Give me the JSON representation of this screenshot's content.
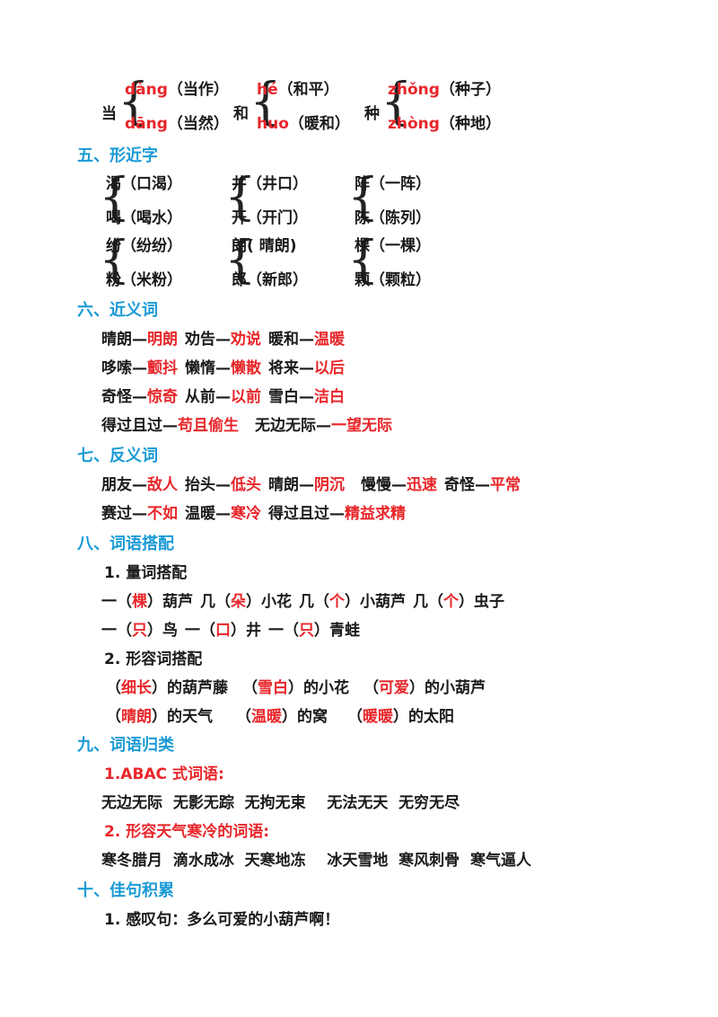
{
  "duoyin": [
    {
      "char": "当",
      "a_py": "dàng",
      "a_word": "（当作）",
      "b_py": "dāng",
      "b_word": "（当然）"
    },
    {
      "char": "和",
      "a_py": "hé",
      "a_word": "（和平）",
      "b_py": "huo",
      "b_word": "（暖和）"
    },
    {
      "char": "种",
      "a_py": "zhǒng",
      "a_word": "（种子）",
      "b_py": "zhòng",
      "b_word": "（种地）"
    }
  ],
  "s5": {
    "title": "五、形近字",
    "pairs": [
      {
        "a": "渴（口渴）",
        "b": "喝（喝水）"
      },
      {
        "a": "井（井口）",
        "b": "开（开门）"
      },
      {
        "a": "阵（一阵）",
        "b": "陈（陈列）"
      },
      {
        "a": "纷（纷纷）",
        "b": "粉（米粉）"
      },
      {
        "a": "朗( 晴朗)",
        "b": "郎（新郎）"
      },
      {
        "a": "棵（一棵）",
        "b": "颗（颗粒）"
      }
    ]
  },
  "s6": {
    "title": "六、近义词",
    "rows": [
      [
        {
          "k": "晴朗—",
          "v": "明朗"
        },
        {
          "k": "劝告—",
          "v": "劝说"
        },
        {
          "k": "暖和—",
          "v": "温暖"
        }
      ],
      [
        {
          "k": "哆嗦—",
          "v": "颤抖"
        },
        {
          "k": "懒惰—",
          "v": "懒散"
        },
        {
          "k": "将来—",
          "v": "以后"
        }
      ],
      [
        {
          "k": "奇怪—",
          "v": "惊奇"
        },
        {
          "k": "从前—",
          "v": "以前"
        },
        {
          "k": "雪白—",
          "v": "洁白"
        }
      ],
      [
        {
          "k": "得过且过—",
          "v": "苟且偷生"
        },
        {
          "k": "无边无际—",
          "v": "一望无际"
        }
      ]
    ]
  },
  "s7": {
    "title": "七、反义词",
    "rows": [
      [
        {
          "k": "朋友—",
          "v": "敌人"
        },
        {
          "k": "抬头—",
          "v": "低头"
        },
        {
          "k": "晴朗—",
          "v": "阴沉"
        },
        {
          "k": "慢慢—",
          "v": "迅速"
        },
        {
          "k": "奇怪—",
          "v": "平常"
        }
      ],
      [
        {
          "k": "赛过—",
          "v": "不如"
        },
        {
          "k": "温暖—",
          "v": "寒冷"
        },
        {
          "k": "得过且过—",
          "v": "精益求精"
        }
      ]
    ]
  },
  "s8": {
    "title": "八、词语搭配",
    "sub1": "1. 量词搭配",
    "liang": [
      [
        {
          "pre": "一（",
          "v": "棵",
          "post": "）葫芦"
        },
        {
          "pre": "几（",
          "v": "朵",
          "post": "）小花"
        },
        {
          "pre": "几（",
          "v": "个",
          "post": "）小葫芦"
        },
        {
          "pre": "几（",
          "v": "个",
          "post": "）虫子"
        }
      ],
      [
        {
          "pre": "一（",
          "v": "只",
          "post": "）鸟"
        },
        {
          "pre": "一（",
          "v": "口",
          "post": "）井"
        },
        {
          "pre": "一（",
          "v": "只",
          "post": "）青蛙"
        }
      ]
    ],
    "sub2": "2. 形容词搭配",
    "xing": [
      [
        {
          "v": "细长",
          "post": "）的葫芦藤"
        },
        {
          "v": "雪白",
          "post": "）的小花"
        },
        {
          "v": "可爱",
          "post": "）的小葫芦"
        }
      ],
      [
        {
          "v": "晴朗",
          "post": "）的天气"
        },
        {
          "v": "温暖",
          "post": "）的窝"
        },
        {
          "v": "暖暖",
          "post": "）的太阳"
        }
      ]
    ]
  },
  "s9": {
    "title": "九、词语归类",
    "sub1": "1.ABAC 式词语:",
    "line1": "无边无际  无影无踪  无拘无束    无法无天  无穷无尽",
    "sub2": "2. 形容天气寒冷的词语:",
    "line2": "寒冬腊月  滴水成冰  天寒地冻    冰天雪地  寒风刺骨  寒气逼人"
  },
  "s10": {
    "title": "十、佳句积累",
    "line1": "1. 感叹句：多么可爱的小葫芦啊！"
  }
}
